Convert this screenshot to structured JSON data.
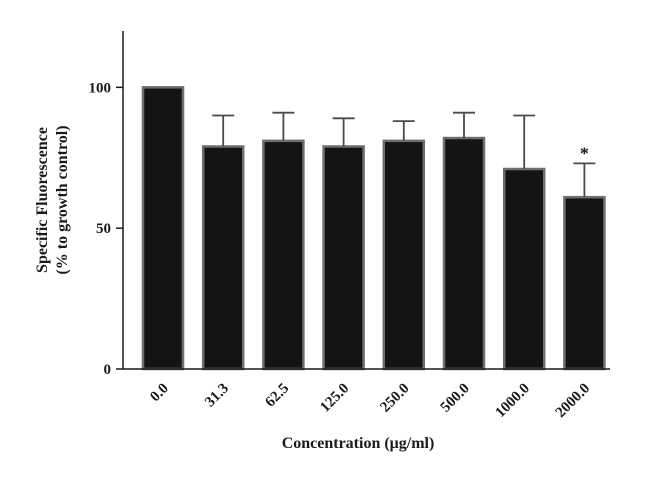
{
  "chart_data": {
    "type": "bar",
    "title": "",
    "xlabel": "Concentration (μg/ml)",
    "ylabel_line1": "Specific Fluorescence",
    "ylabel_line2": "(% to growth control)",
    "categories": [
      "0.0",
      "31.3",
      "62.5",
      "125.0",
      "250.0",
      "500.0",
      "1000.0",
      "2000.0"
    ],
    "values": [
      100,
      79,
      81,
      79,
      81,
      82,
      71,
      61
    ],
    "error_upper": [
      0,
      11,
      10,
      10,
      7,
      9,
      19,
      12
    ],
    "annotations": [
      "",
      "",
      "",
      "",
      "",
      "",
      "",
      "*"
    ],
    "ylim": [
      0,
      120
    ],
    "yticks": [
      "0",
      "50",
      "100"
    ],
    "grid": false,
    "bar_color": "#141414",
    "bar_edge_color": "#6e6e6e"
  }
}
